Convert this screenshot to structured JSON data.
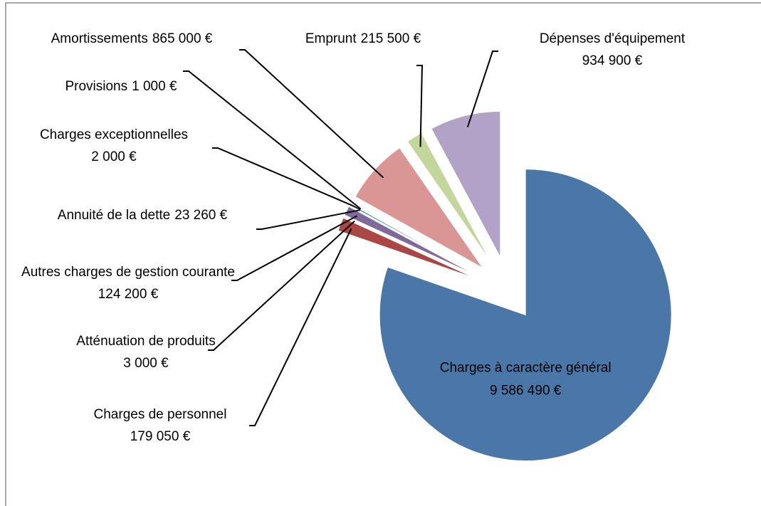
{
  "chart_data": {
    "type": "pie",
    "categories": [
      "Charges à caractère général",
      "Charges de personnel",
      "Atténuation de produits",
      "Autres charges de gestion courante",
      "Annuité de la dette",
      "Charges exceptionnelles",
      "Provisions",
      "Amortissements",
      "Emprunt",
      "Dépenses d'équipement"
    ],
    "values": [
      9586490,
      179050,
      3000,
      124200,
      23260,
      2000,
      1000,
      865000,
      215500,
      934900
    ],
    "value_labels": [
      "9 586 490 €",
      "179 050 €",
      "3 000 €",
      "124 200 €",
      "23 260 €",
      "2 000 €",
      "1 000 €",
      "865 000 €",
      "215 500 €",
      "934 900 €"
    ],
    "colors": [
      "#4a76a8",
      "#aa4643",
      "#89a54e",
      "#80699b",
      "#3d96ae",
      "#db843d",
      "#92a8cd",
      "#d99694",
      "#c3d69b",
      "#b2a2c7"
    ]
  }
}
